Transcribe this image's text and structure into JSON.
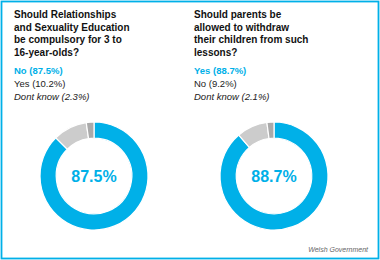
{
  "chart_data": [
    {
      "type": "donut",
      "title": "Should Relationships\nand Sexuality Education\nbe compulsory for 3 to\n16-year-olds?",
      "categories": [
        "No (87.5%)",
        "Yes (10.2%)",
        "Dont know (2.3%)"
      ],
      "values": [
        87.5,
        10.2,
        2.3
      ],
      "colors": [
        "#00b0e8",
        "#cccccc",
        "#aaaaaa"
      ],
      "annotations": [
        "87.5%"
      ],
      "legend": "upper left"
    },
    {
      "type": "donut",
      "title": "Should parents be\nallowed to withdraw\ntheir children from such\nlessons?",
      "categories": [
        "Yes (88.7%)",
        "No (9.2%)",
        "Dont know (2.1%)"
      ],
      "values": [
        88.7,
        9.2,
        2.1
      ],
      "colors": [
        "#00b0e8",
        "#cccccc",
        "#aaaaaa"
      ],
      "annotations": [
        "88.7%"
      ],
      "legend": "upper left",
      "source": "Welsh Government"
    }
  ]
}
